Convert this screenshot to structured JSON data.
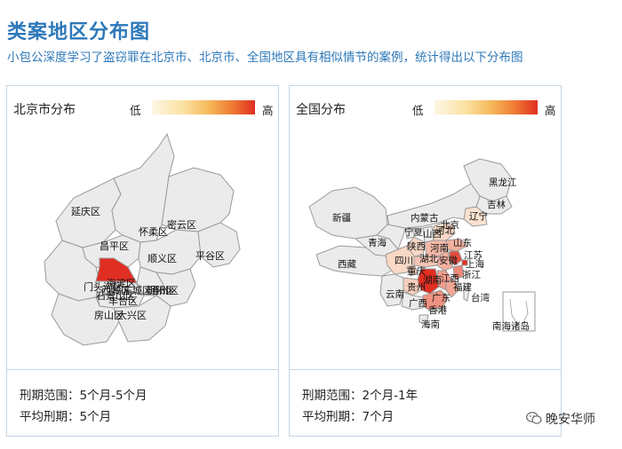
{
  "page": {
    "title": "类案地区分布图",
    "subtitle": "小包公深度学习了盗窃罪在北京市、北京市、全国地区具有相似情节的案例，统计得出以下分布图"
  },
  "legend": {
    "low": "低",
    "high": "高",
    "low_color": "#fdf6e3",
    "high_color": "#e02f22"
  },
  "beijing": {
    "panel_title": "北京市分布",
    "districts": [
      "延庆区",
      "怀柔区",
      "密云区",
      "昌平区",
      "顺义区",
      "平谷区",
      "海淀区",
      "门头沟区",
      "西城区",
      "东城区",
      "朝阳区",
      "石景山区",
      "丰台区",
      "通州区",
      "房山区",
      "大兴区"
    ],
    "highlighted": "海淀区",
    "highlight_color": "#e02f22",
    "sentence_range": "刑期范围：5个月-5个月",
    "avg_sentence": "平均刑期：5个月"
  },
  "china": {
    "panel_title": "全国分布",
    "provinces": [
      "黑龙江",
      "吉林",
      "辽宁",
      "内蒙古",
      "北京",
      "河北",
      "山西",
      "新疆",
      "青海",
      "宁夏",
      "陕西",
      "山东",
      "河南",
      "江苏",
      "西藏",
      "四川",
      "湖北",
      "安徽",
      "上海",
      "浙江",
      "重庆",
      "湖南",
      "江西",
      "福建",
      "贵州",
      "云南",
      "广西",
      "广东",
      "台湾",
      "香港",
      "海南",
      "南海诸岛"
    ],
    "levels": {
      "湖南": 1.0,
      "上海": 1.0,
      "江苏": 0.85,
      "浙江": 0.55,
      "福建": 0.4,
      "江西": 0.45,
      "广东": 0.5,
      "山东": 0.35,
      "河南": 0.3,
      "安徽": 0.35,
      "湖北": 0.25,
      "四川": 0.15,
      "重庆": 0.2,
      "贵州": 0.2,
      "陕西": 0.15,
      "北京": 0.2,
      "河北": 0.15,
      "辽宁": 0.1
    },
    "sentence_range": "刑期范围：2个月-1年",
    "avg_sentence": "平均刑期：7个月"
  },
  "watermark": {
    "text": "晚安华师",
    "icon": "wechat-icon"
  }
}
